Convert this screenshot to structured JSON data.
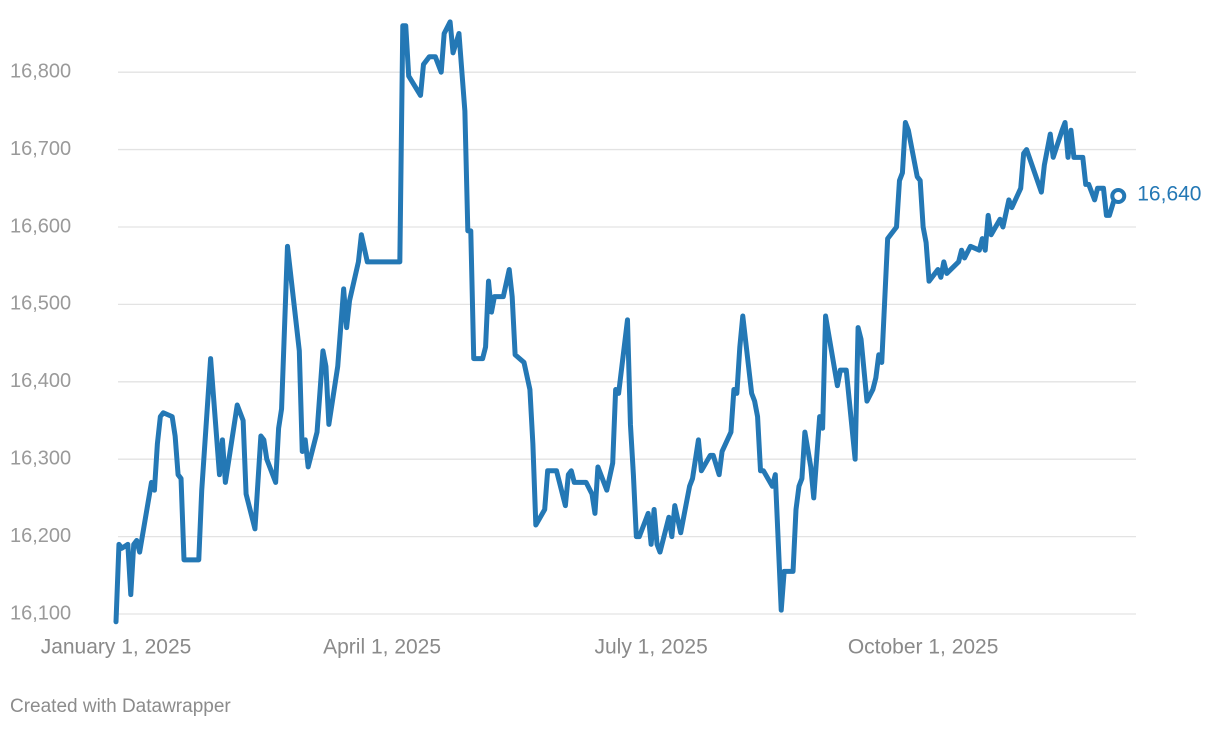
{
  "chart_data": {
    "type": "line",
    "credit": "Created with Datawrapper",
    "end_label": "16,640",
    "xlim": [
      "2025-01-01",
      "2025-12-12"
    ],
    "xticks": [
      {
        "value": "2025-01-01",
        "label": "January 1, 2025"
      },
      {
        "value": "2025-04-01",
        "label": "April 1, 2025"
      },
      {
        "value": "2025-07-01",
        "label": "July 1, 2025"
      },
      {
        "value": "2025-10-01",
        "label": "October 1, 2025"
      }
    ],
    "ylim": [
      16100,
      16870
    ],
    "yticks": [
      {
        "value": 16100,
        "label": "16,100"
      },
      {
        "value": 16200,
        "label": "16,200"
      },
      {
        "value": 16300,
        "label": "16,300"
      },
      {
        "value": 16400,
        "label": "16,400"
      },
      {
        "value": 16500,
        "label": "16,500"
      },
      {
        "value": 16600,
        "label": "16,600"
      },
      {
        "value": 16700,
        "label": "16,700"
      },
      {
        "value": 16800,
        "label": "16,800"
      }
    ],
    "grid": true,
    "x": [
      "2025-01-01",
      "2025-01-02",
      "2025-01-03",
      "2025-01-05",
      "2025-01-06",
      "2025-01-07",
      "2025-01-08",
      "2025-01-09",
      "2025-01-13",
      "2025-01-14",
      "2025-01-15",
      "2025-01-16",
      "2025-01-17",
      "2025-01-20",
      "2025-01-21",
      "2025-01-22",
      "2025-01-23",
      "2025-01-24",
      "2025-01-29",
      "2025-01-30",
      "2025-02-02",
      "2025-02-04",
      "2025-02-05",
      "2025-02-06",
      "2025-02-07",
      "2025-02-11",
      "2025-02-13",
      "2025-02-14",
      "2025-02-17",
      "2025-02-19",
      "2025-02-20",
      "2025-02-21",
      "2025-02-24",
      "2025-02-25",
      "2025-02-26",
      "2025-02-28",
      "2025-03-04",
      "2025-03-05",
      "2025-03-06",
      "2025-03-07",
      "2025-03-10",
      "2025-03-12",
      "2025-03-13",
      "2025-03-14",
      "2025-03-17",
      "2025-03-19",
      "2025-03-20",
      "2025-03-21",
      "2025-03-24",
      "2025-03-25",
      "2025-03-27",
      "2025-04-07",
      "2025-04-08",
      "2025-04-09",
      "2025-04-10",
      "2025-04-14",
      "2025-04-15",
      "2025-04-17",
      "2025-04-19",
      "2025-04-21",
      "2025-04-22",
      "2025-04-24",
      "2025-04-25",
      "2025-04-27",
      "2025-04-29",
      "2025-04-30",
      "2025-05-01",
      "2025-05-02",
      "2025-05-05",
      "2025-05-06",
      "2025-05-07",
      "2025-05-08",
      "2025-05-09",
      "2025-05-12",
      "2025-05-14",
      "2025-05-15",
      "2025-05-16",
      "2025-05-19",
      "2025-05-21",
      "2025-05-22",
      "2025-05-23",
      "2025-05-26",
      "2025-05-27",
      "2025-05-30",
      "2025-06-02",
      "2025-06-03",
      "2025-06-04",
      "2025-06-05",
      "2025-06-09",
      "2025-06-11",
      "2025-06-12",
      "2025-06-13",
      "2025-06-16",
      "2025-06-18",
      "2025-06-19",
      "2025-06-20",
      "2025-06-23",
      "2025-06-24",
      "2025-06-25",
      "2025-06-26",
      "2025-06-27",
      "2025-06-30",
      "2025-07-01",
      "2025-07-02",
      "2025-07-03",
      "2025-07-04",
      "2025-07-07",
      "2025-07-08",
      "2025-07-09",
      "2025-07-11",
      "2025-07-14",
      "2025-07-15",
      "2025-07-17",
      "2025-07-18",
      "2025-07-21",
      "2025-07-22",
      "2025-07-24",
      "2025-07-25",
      "2025-07-28",
      "2025-07-29",
      "2025-07-30",
      "2025-07-31",
      "2025-08-01",
      "2025-08-04",
      "2025-08-05",
      "2025-08-06",
      "2025-08-07",
      "2025-08-08",
      "2025-08-11",
      "2025-08-12",
      "2025-08-14",
      "2025-08-15",
      "2025-08-18",
      "2025-08-19",
      "2025-08-20",
      "2025-08-21",
      "2025-08-22",
      "2025-08-24",
      "2025-08-25",
      "2025-08-27",
      "2025-08-28",
      "2025-08-29",
      "2025-09-02",
      "2025-09-03",
      "2025-09-05",
      "2025-09-08",
      "2025-09-09",
      "2025-09-10",
      "2025-09-12",
      "2025-09-14",
      "2025-09-15",
      "2025-09-16",
      "2025-09-17",
      "2025-09-19",
      "2025-09-22",
      "2025-09-23",
      "2025-09-24",
      "2025-09-25",
      "2025-09-26",
      "2025-09-29",
      "2025-09-30",
      "2025-10-01",
      "2025-10-02",
      "2025-10-03",
      "2025-10-06",
      "2025-10-07",
      "2025-10-08",
      "2025-10-09",
      "2025-10-13",
      "2025-10-14",
      "2025-10-15",
      "2025-10-17",
      "2025-10-20",
      "2025-10-21",
      "2025-10-22",
      "2025-10-23",
      "2025-10-24",
      "2025-10-27",
      "2025-10-28",
      "2025-10-30",
      "2025-10-31",
      "2025-11-03",
      "2025-11-04",
      "2025-11-05",
      "2025-11-10",
      "2025-11-11",
      "2025-11-13",
      "2025-11-14",
      "2025-11-17",
      "2025-11-18",
      "2025-11-19",
      "2025-11-20",
      "2025-11-21",
      "2025-11-24",
      "2025-11-25",
      "2025-11-26",
      "2025-11-28",
      "2025-11-29",
      "2025-12-01",
      "2025-12-02",
      "2025-12-03",
      "2025-12-05",
      "2025-12-06"
    ],
    "series": [
      {
        "color": "#2478b5",
        "values": [
          16090,
          16190,
          16185,
          16190,
          16125,
          16190,
          16195,
          16180,
          16270,
          16260,
          16320,
          16355,
          16360,
          16355,
          16330,
          16280,
          16275,
          16170,
          16170,
          16260,
          16430,
          16330,
          16280,
          16325,
          16270,
          16370,
          16350,
          16255,
          16210,
          16330,
          16325,
          16300,
          16270,
          16340,
          16365,
          16575,
          16440,
          16310,
          16325,
          16290,
          16335,
          16440,
          16420,
          16345,
          16420,
          16520,
          16470,
          16505,
          16555,
          16590,
          16555,
          16555,
          16860,
          16860,
          16795,
          16770,
          16810,
          16820,
          16820,
          16800,
          16850,
          16865,
          16825,
          16850,
          16750,
          16595,
          16595,
          16430,
          16430,
          16445,
          16530,
          16490,
          16510,
          16510,
          16545,
          16510,
          16435,
          16425,
          16390,
          16320,
          16215,
          16235,
          16285,
          16285,
          16240,
          16280,
          16285,
          16270,
          16270,
          16255,
          16230,
          16290,
          16260,
          16295,
          16390,
          16385,
          16480,
          16345,
          16280,
          16200,
          16200,
          16230,
          16190,
          16235,
          16190,
          16180,
          16225,
          16200,
          16240,
          16205,
          16265,
          16275,
          16325,
          16285,
          16305,
          16305,
          16280,
          16310,
          16335,
          16390,
          16385,
          16445,
          16485,
          16385,
          16375,
          16355,
          16285,
          16285,
          16265,
          16280,
          16105,
          16155,
          16155,
          16235,
          16265,
          16275,
          16335,
          16290,
          16250,
          16355,
          16340,
          16485,
          16395,
          16415,
          16415,
          16300,
          16470,
          16455,
          16375,
          16390,
          16405,
          16435,
          16425,
          16585,
          16600,
          16660,
          16670,
          16735,
          16725,
          16665,
          16660,
          16600,
          16580,
          16530,
          16545,
          16535,
          16555,
          16540,
          16555,
          16570,
          16560,
          16575,
          16570,
          16585,
          16570,
          16615,
          16590,
          16610,
          16600,
          16635,
          16625,
          16650,
          16695,
          16700,
          16645,
          16680,
          16720,
          16690,
          16725,
          16735,
          16690,
          16725,
          16690,
          16690,
          16655,
          16655,
          16635,
          16650,
          16650,
          16615,
          16615,
          16640,
          16640
        ]
      }
    ]
  }
}
